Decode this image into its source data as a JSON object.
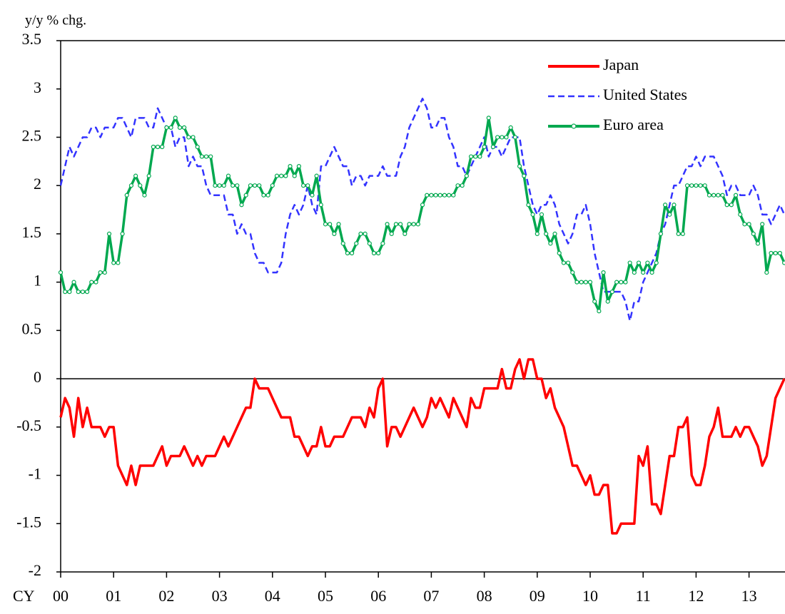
{
  "chart_data": {
    "type": "line",
    "ylabel": "y/y % chg.",
    "xlabel": "CY",
    "categories": [
      "00",
      null,
      null,
      null,
      null,
      null,
      null,
      null,
      null,
      null,
      null,
      null,
      "01",
      null,
      null,
      null,
      null,
      null,
      null,
      null,
      null,
      null,
      null,
      null,
      "02",
      null,
      null,
      null,
      null,
      null,
      null,
      null,
      null,
      null,
      null,
      null,
      "03",
      null,
      null,
      null,
      null,
      null,
      null,
      null,
      null,
      null,
      null,
      null,
      "04",
      null,
      null,
      null,
      null,
      null,
      null,
      null,
      null,
      null,
      null,
      null,
      "05",
      null,
      null,
      null,
      null,
      null,
      null,
      null,
      null,
      null,
      null,
      null,
      "06",
      null,
      null,
      null,
      null,
      null,
      null,
      null,
      null,
      null,
      null,
      null,
      "07",
      null,
      null,
      null,
      null,
      null,
      null,
      null,
      null,
      null,
      null,
      null,
      "08",
      null,
      null,
      null,
      null,
      null,
      null,
      null,
      null,
      null,
      null,
      null,
      "09",
      null,
      null,
      null,
      null,
      null,
      null,
      null,
      null,
      null,
      null,
      null,
      "10",
      null,
      null,
      null,
      null,
      null,
      null,
      null,
      null,
      null,
      null,
      null,
      "11",
      null,
      null,
      null,
      null,
      null,
      null,
      null,
      null,
      null,
      null,
      null,
      "12",
      null,
      null,
      null,
      null,
      null,
      null,
      null,
      null,
      null,
      null,
      null,
      "13",
      null,
      null,
      null,
      null,
      null,
      null,
      null,
      null
    ],
    "ylim": [
      -2,
      3.5
    ],
    "yticks": [
      -2,
      -1.5,
      -1,
      -0.5,
      0,
      0.5,
      1,
      1.5,
      2,
      2.5,
      3,
      3.5
    ],
    "legend": "top-right",
    "series": [
      {
        "name": "Japan",
        "color": "#ff0000",
        "style": "solid",
        "markers": false,
        "values": [
          -0.4,
          -0.2,
          -0.3,
          -0.6,
          -0.2,
          -0.5,
          -0.3,
          -0.5,
          -0.5,
          -0.5,
          -0.6,
          -0.5,
          -0.5,
          -0.9,
          -1.0,
          -1.1,
          -0.9,
          -1.1,
          -0.9,
          -0.9,
          -0.9,
          -0.9,
          -0.8,
          -0.7,
          -0.9,
          -0.8,
          -0.8,
          -0.8,
          -0.7,
          -0.8,
          -0.9,
          -0.8,
          -0.9,
          -0.8,
          -0.8,
          -0.8,
          -0.7,
          -0.6,
          -0.7,
          -0.6,
          -0.5,
          -0.4,
          -0.3,
          -0.3,
          0.0,
          -0.1,
          -0.1,
          -0.1,
          -0.2,
          -0.3,
          -0.4,
          -0.4,
          -0.4,
          -0.6,
          -0.6,
          -0.7,
          -0.8,
          -0.7,
          -0.7,
          -0.5,
          -0.7,
          -0.7,
          -0.6,
          -0.6,
          -0.6,
          -0.5,
          -0.4,
          -0.4,
          -0.4,
          -0.5,
          -0.3,
          -0.4,
          -0.1,
          0.0,
          -0.7,
          -0.5,
          -0.5,
          -0.6,
          -0.5,
          -0.4,
          -0.3,
          -0.4,
          -0.5,
          -0.4,
          -0.2,
          -0.3,
          -0.2,
          -0.3,
          -0.4,
          -0.2,
          -0.3,
          -0.4,
          -0.5,
          -0.2,
          -0.3,
          -0.3,
          -0.1,
          -0.1,
          -0.1,
          -0.1,
          0.1,
          -0.1,
          -0.1,
          0.1,
          0.2,
          0.0,
          0.2,
          0.2,
          0.0,
          0.0,
          -0.2,
          -0.1,
          -0.3,
          -0.4,
          -0.5,
          -0.7,
          -0.9,
          -0.9,
          -1.0,
          -1.1,
          -1.0,
          -1.2,
          -1.2,
          -1.1,
          -1.1,
          -1.6,
          -1.6,
          -1.5,
          -1.5,
          -1.5,
          -1.5,
          -0.8,
          -0.9,
          -0.7,
          -1.3,
          -1.3,
          -1.4,
          -1.1,
          -0.8,
          -0.8,
          -0.5,
          -0.5,
          -0.4,
          -1.0,
          -1.1,
          -1.1,
          -0.9,
          -0.6,
          -0.5,
          -0.3,
          -0.6,
          -0.6,
          -0.6,
          -0.5,
          -0.6,
          -0.5,
          -0.5,
          -0.6,
          -0.7,
          -0.9,
          -0.8,
          -0.5,
          -0.2,
          -0.1,
          0.0
        ]
      },
      {
        "name": "United States",
        "color": "#3333ff",
        "style": "dashed",
        "markers": false,
        "values": [
          2.0,
          2.2,
          2.4,
          2.3,
          2.4,
          2.5,
          2.5,
          2.6,
          2.6,
          2.5,
          2.6,
          2.6,
          2.6,
          2.7,
          2.7,
          2.6,
          2.5,
          2.7,
          2.7,
          2.7,
          2.6,
          2.6,
          2.8,
          2.7,
          2.6,
          2.6,
          2.4,
          2.5,
          2.5,
          2.2,
          2.3,
          2.2,
          2.2,
          2.0,
          1.9,
          1.9,
          1.9,
          1.9,
          1.7,
          1.7,
          1.5,
          1.6,
          1.5,
          1.5,
          1.3,
          1.2,
          1.2,
          1.1,
          1.1,
          1.1,
          1.2,
          1.5,
          1.7,
          1.8,
          1.7,
          1.8,
          2.0,
          1.8,
          1.7,
          2.2,
          2.2,
          2.3,
          2.4,
          2.3,
          2.2,
          2.2,
          2.0,
          2.1,
          2.1,
          2.0,
          2.1,
          2.1,
          2.1,
          2.2,
          2.1,
          2.1,
          2.1,
          2.3,
          2.4,
          2.6,
          2.7,
          2.8,
          2.9,
          2.8,
          2.6,
          2.6,
          2.7,
          2.7,
          2.5,
          2.4,
          2.2,
          2.2,
          2.1,
          2.2,
          2.3,
          2.4,
          2.5,
          2.3,
          2.4,
          2.4,
          2.3,
          2.4,
          2.5,
          2.5,
          2.5,
          2.2,
          2.0,
          1.8,
          1.7,
          1.8,
          1.8,
          1.9,
          1.8,
          1.6,
          1.5,
          1.4,
          1.5,
          1.7,
          1.7,
          1.8,
          1.6,
          1.3,
          1.1,
          0.9,
          0.9,
          0.9,
          0.9,
          0.9,
          0.8,
          0.6,
          0.8,
          0.8,
          1.0,
          1.1,
          1.2,
          1.3,
          1.5,
          1.6,
          1.8,
          2.0,
          2.0,
          2.1,
          2.2,
          2.2,
          2.3,
          2.2,
          2.3,
          2.3,
          2.3,
          2.2,
          2.1,
          1.9,
          2.0,
          2.0,
          1.9,
          1.9,
          1.9,
          2.0,
          1.9,
          1.7,
          1.7,
          1.6,
          1.7,
          1.8,
          1.7
        ]
      },
      {
        "name": "Euro area",
        "color": "#00a84f",
        "style": "solid",
        "markers": true,
        "values": [
          1.1,
          0.9,
          0.9,
          1.0,
          0.9,
          0.9,
          0.9,
          1.0,
          1.0,
          1.1,
          1.1,
          1.5,
          1.2,
          1.2,
          1.5,
          1.9,
          2.0,
          2.1,
          2.0,
          1.9,
          2.1,
          2.4,
          2.4,
          2.4,
          2.6,
          2.6,
          2.7,
          2.6,
          2.6,
          2.5,
          2.5,
          2.4,
          2.3,
          2.3,
          2.3,
          2.0,
          2.0,
          2.0,
          2.1,
          2.0,
          2.0,
          1.8,
          1.9,
          2.0,
          2.0,
          2.0,
          1.9,
          1.9,
          2.0,
          2.1,
          2.1,
          2.1,
          2.2,
          2.1,
          2.2,
          2.0,
          2.0,
          1.9,
          2.1,
          1.8,
          1.6,
          1.6,
          1.5,
          1.6,
          1.4,
          1.3,
          1.3,
          1.4,
          1.5,
          1.5,
          1.4,
          1.3,
          1.3,
          1.4,
          1.6,
          1.5,
          1.6,
          1.6,
          1.5,
          1.6,
          1.6,
          1.6,
          1.8,
          1.9,
          1.9,
          1.9,
          1.9,
          1.9,
          1.9,
          1.9,
          2.0,
          2.0,
          2.1,
          2.3,
          2.3,
          2.3,
          2.4,
          2.7,
          2.4,
          2.5,
          2.5,
          2.5,
          2.6,
          2.5,
          2.2,
          2.1,
          1.8,
          1.7,
          1.5,
          1.7,
          1.5,
          1.4,
          1.5,
          1.3,
          1.2,
          1.2,
          1.1,
          1.0,
          1.0,
          1.0,
          1.0,
          0.8,
          0.7,
          1.1,
          0.8,
          0.9,
          1.0,
          1.0,
          1.0,
          1.2,
          1.1,
          1.2,
          1.1,
          1.2,
          1.1,
          1.2,
          1.5,
          1.8,
          1.7,
          1.8,
          1.5,
          1.5,
          2.0,
          2.0,
          2.0,
          2.0,
          2.0,
          1.9,
          1.9,
          1.9,
          1.9,
          1.8,
          1.8,
          1.9,
          1.7,
          1.6,
          1.6,
          1.5,
          1.4,
          1.6,
          1.1,
          1.3,
          1.3,
          1.3,
          1.2
        ]
      }
    ]
  }
}
